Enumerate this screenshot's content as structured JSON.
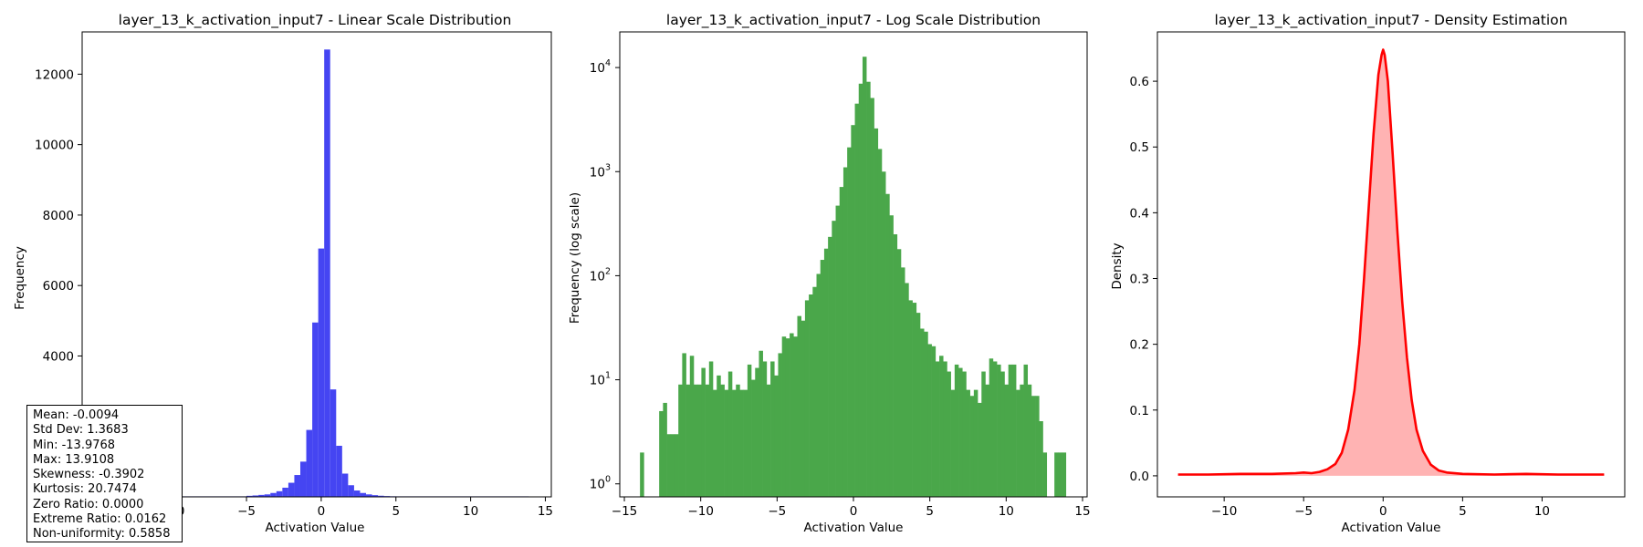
{
  "chart_data": [
    {
      "type": "bar",
      "title": "layer_13_k_activation_input7 - Linear Scale Distribution",
      "xlabel": "Activation Value",
      "ylabel": "Frequency",
      "xlim": [
        -16.0,
        15.4
      ],
      "ylim": [
        0,
        13200
      ],
      "xticks": [
        -15,
        -10,
        -5,
        0,
        5,
        10,
        15
      ],
      "yticks": [
        0,
        2000,
        4000,
        6000,
        8000,
        10000,
        12000
      ],
      "color": "#4545f2",
      "bins": [
        {
          "x0": -5.0,
          "x1": -4.6,
          "value": 30
        },
        {
          "x0": -4.6,
          "x1": -4.2,
          "value": 40
        },
        {
          "x0": -4.2,
          "x1": -3.8,
          "value": 55
        },
        {
          "x0": -3.8,
          "x1": -3.4,
          "value": 70
        },
        {
          "x0": -3.4,
          "x1": -3.0,
          "value": 110
        },
        {
          "x0": -3.0,
          "x1": -2.6,
          "value": 160
        },
        {
          "x0": -2.6,
          "x1": -2.2,
          "value": 260
        },
        {
          "x0": -2.2,
          "x1": -1.8,
          "value": 400
        },
        {
          "x0": -1.8,
          "x1": -1.4,
          "value": 620
        },
        {
          "x0": -1.4,
          "x1": -1.0,
          "value": 1000
        },
        {
          "x0": -1.0,
          "x1": -0.6,
          "value": 1900
        },
        {
          "x0": -0.6,
          "x1": -0.2,
          "value": 4950
        },
        {
          "x0": -0.2,
          "x1": 0.2,
          "value": 7050
        },
        {
          "x0": 0.2,
          "x1": 0.6,
          "value": 12700
        },
        {
          "x0": 0.6,
          "x1": 1.0,
          "value": 3050
        },
        {
          "x0": 1.0,
          "x1": 1.4,
          "value": 1450
        },
        {
          "x0": 1.4,
          "x1": 1.8,
          "value": 660
        },
        {
          "x0": 1.8,
          "x1": 2.2,
          "value": 330
        },
        {
          "x0": 2.2,
          "x1": 2.6,
          "value": 180
        },
        {
          "x0": 2.6,
          "x1": 3.0,
          "value": 110
        },
        {
          "x0": 3.0,
          "x1": 3.4,
          "value": 70
        },
        {
          "x0": 3.4,
          "x1": 3.8,
          "value": 48
        },
        {
          "x0": 3.8,
          "x1": 4.2,
          "value": 32
        },
        {
          "x0": 4.2,
          "x1": 4.6,
          "value": 22
        },
        {
          "x0": 4.6,
          "x1": 5.0,
          "value": 15
        }
      ],
      "baseline": {
        "x0": -14.0,
        "x1": 13.9,
        "value": 15
      },
      "stats": [
        "Mean: -0.0094",
        "Std Dev: 1.3683",
        "Min: -13.9768",
        "Max: 13.9108",
        "Skewness: -0.3902",
        "Kurtosis: 20.7474",
        "Zero Ratio: 0.0000",
        "Extreme Ratio: 0.0162",
        "Non-uniformity: 0.5858"
      ]
    },
    {
      "type": "bar",
      "scale": "log",
      "title": "layer_13_k_activation_input7 - Log Scale Distribution",
      "xlabel": "Activation Value",
      "ylabel": "Frequency (log scale)",
      "xlim": [
        -15.3,
        15.3
      ],
      "ylim": [
        0.75,
        22000
      ],
      "xticks": [
        -15,
        -10,
        -5,
        0,
        5,
        10,
        15
      ],
      "yticks": [
        1,
        10,
        100,
        1000,
        10000
      ],
      "ytick_labels": [
        "10",
        "10",
        "10",
        "10",
        "10"
      ],
      "ytick_exponents": [
        "0",
        "1",
        "2",
        "3",
        "4"
      ],
      "color": "#4aa74a",
      "x_start": -13.9768,
      "x_end": 13.9108,
      "counts": [
        2,
        0,
        0,
        0,
        0,
        5,
        6,
        3,
        3,
        3,
        9,
        18,
        9,
        17,
        9,
        9,
        13,
        9,
        15,
        8,
        11,
        9,
        8,
        12,
        8,
        9,
        8,
        8,
        14,
        10,
        13,
        19,
        15,
        9,
        15,
        11,
        18,
        26,
        25,
        28,
        26,
        41,
        37,
        58,
        66,
        78,
        104,
        142,
        182,
        236,
        337,
        471,
        712,
        1100,
        1710,
        2800,
        4500,
        7000,
        12700,
        7300,
        5100,
        2600,
        1650,
        1000,
        610,
        380,
        250,
        180,
        120,
        85,
        58,
        55,
        44,
        31,
        29,
        22,
        21,
        15,
        17,
        15,
        12,
        8,
        14,
        13,
        12,
        8,
        7,
        8,
        6,
        12,
        9,
        16,
        15,
        14,
        12,
        9,
        14,
        14,
        8,
        9,
        14,
        9,
        7,
        7,
        4,
        2,
        0,
        0,
        2,
        2,
        2
      ]
    },
    {
      "type": "area",
      "title": "layer_13_k_activation_input7 - Density Estimation",
      "xlabel": "Activation Value",
      "ylabel": "Density",
      "xlim": [
        -14.2,
        15.2
      ],
      "ylim": [
        -0.032,
        0.675
      ],
      "xticks": [
        -10,
        -5,
        0,
        5,
        10
      ],
      "yticks": [
        0.0,
        0.1,
        0.2,
        0.3,
        0.4,
        0.5,
        0.6
      ],
      "line_color": "#ff0000",
      "fill_color": "#ffb3b3",
      "points": [
        [
          -12.9,
          0.002
        ],
        [
          -11.0,
          0.002
        ],
        [
          -9.0,
          0.003
        ],
        [
          -7.0,
          0.003
        ],
        [
          -5.5,
          0.004
        ],
        [
          -5.0,
          0.005
        ],
        [
          -4.5,
          0.004
        ],
        [
          -4.0,
          0.006
        ],
        [
          -3.5,
          0.01
        ],
        [
          -3.0,
          0.018
        ],
        [
          -2.6,
          0.035
        ],
        [
          -2.2,
          0.07
        ],
        [
          -1.8,
          0.13
        ],
        [
          -1.5,
          0.2
        ],
        [
          -1.2,
          0.3
        ],
        [
          -0.9,
          0.41
        ],
        [
          -0.6,
          0.52
        ],
        [
          -0.3,
          0.61
        ],
        [
          -0.1,
          0.64
        ],
        [
          0.0,
          0.648
        ],
        [
          0.1,
          0.64
        ],
        [
          0.3,
          0.6
        ],
        [
          0.6,
          0.49
        ],
        [
          0.9,
          0.37
        ],
        [
          1.2,
          0.265
        ],
        [
          1.5,
          0.18
        ],
        [
          1.8,
          0.115
        ],
        [
          2.1,
          0.07
        ],
        [
          2.5,
          0.038
        ],
        [
          3.0,
          0.017
        ],
        [
          3.5,
          0.008
        ],
        [
          4.0,
          0.005
        ],
        [
          5.0,
          0.003
        ],
        [
          7.0,
          0.002
        ],
        [
          9.0,
          0.003
        ],
        [
          11.0,
          0.002
        ],
        [
          13.9,
          0.002
        ]
      ]
    }
  ]
}
